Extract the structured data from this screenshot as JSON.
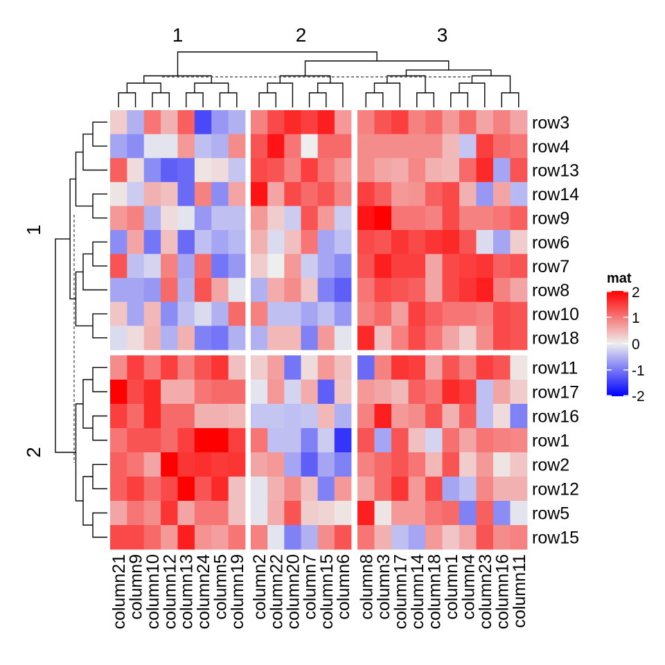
{
  "chart_data": {
    "type": "heatmap",
    "title": "",
    "legend": {
      "title": "mat",
      "ticks": [
        2,
        1,
        0,
        -1,
        -2
      ],
      "range": [
        -2,
        2
      ],
      "colors": {
        "low": "#0000ff",
        "mid": "#eeeeee",
        "high": "#ff0000"
      },
      "placement": "right"
    },
    "column_slices": [
      {
        "label": "1",
        "columns": [
          "column21",
          "column9",
          "column10",
          "column12",
          "column13",
          "column24",
          "column5",
          "column19"
        ]
      },
      {
        "label": "2",
        "columns": [
          "column2",
          "column22",
          "column20",
          "column7",
          "column15",
          "column6"
        ]
      },
      {
        "label": "3",
        "columns": [
          "column8",
          "column3",
          "column17",
          "column14",
          "column18",
          "column1",
          "column4",
          "column23",
          "column16",
          "column11"
        ]
      }
    ],
    "row_slices": [
      {
        "label": "1",
        "rows": [
          "row3",
          "row4",
          "row13",
          "row14",
          "row9",
          "row6",
          "row7",
          "row8",
          "row10",
          "row18"
        ]
      },
      {
        "label": "2",
        "rows": [
          "row11",
          "row17",
          "row16",
          "row1",
          "row2",
          "row12",
          "row5",
          "row15"
        ]
      }
    ],
    "values": [
      [
        0.2,
        -0.4,
        0.9,
        0.4,
        1.1,
        -1.3,
        -0.6,
        -0.4,
        0.8,
        1.3,
        1.6,
        1.4,
        1.7,
        0.6,
        0.8,
        1.2,
        1.4,
        0.8,
        1.0,
        0.6,
        1.0,
        0.5,
        0.8,
        0.5
      ],
      [
        -0.5,
        -0.7,
        -0.05,
        -0.05,
        0.6,
        -0.3,
        -0.4,
        0.7,
        1.2,
        1.8,
        0.9,
        0.0,
        1.0,
        1.0,
        0.7,
        0.7,
        0.7,
        0.7,
        0.7,
        0.35,
        -0.25,
        1.4,
        1.0,
        0.9
      ],
      [
        1.1,
        0.1,
        -0.7,
        -1.1,
        -1.0,
        0.05,
        0.1,
        -0.25,
        1.3,
        1.2,
        0.8,
        1.4,
        0.9,
        0.6,
        0.7,
        0.5,
        0.45,
        0.75,
        0.4,
        0.35,
        1.0,
        1.6,
        -0.5,
        1.2
      ],
      [
        0.05,
        -0.2,
        0.4,
        0.3,
        -1.0,
        0.8,
        -0.7,
        0.5,
        1.8,
        0.5,
        1.3,
        1.0,
        1.2,
        0.8,
        1.4,
        1.1,
        0.6,
        0.65,
        1.1,
        1.3,
        0.4,
        -0.6,
        0.5,
        -0.35
      ],
      [
        0.6,
        0.8,
        -0.4,
        0.1,
        -0.05,
        -0.6,
        -0.3,
        -0.3,
        0.6,
        0.2,
        -0.2,
        1.2,
        0.6,
        -0.2,
        1.8,
        2.0,
        0.9,
        0.9,
        0.8,
        1.3,
        0.8,
        0.8,
        0.9,
        1.1
      ],
      [
        -0.7,
        0.5,
        -0.9,
        0.3,
        -1.0,
        -0.3,
        -0.5,
        -0.35,
        0.4,
        -0.1,
        0.3,
        0.9,
        -0.5,
        -0.3,
        1.3,
        1.2,
        1.5,
        1.3,
        1.5,
        1.6,
        1.2,
        -0.1,
        -0.5,
        0.2
      ],
      [
        1.2,
        -0.3,
        -0.15,
        0.8,
        -0.5,
        1.0,
        -0.9,
        -0.6,
        0.2,
        0.0,
        0.6,
        -0.2,
        -0.5,
        -0.7,
        1.2,
        1.7,
        1.4,
        1.4,
        0.5,
        1.3,
        1.4,
        1.5,
        1.1,
        1.2
      ],
      [
        -0.5,
        -0.5,
        -0.6,
        1.0,
        -0.4,
        1.2,
        0.5,
        -0.05,
        -0.4,
        0.45,
        0.7,
        0.25,
        -0.8,
        -1.1,
        0.9,
        1.3,
        1.2,
        1.1,
        0.5,
        1.3,
        1.5,
        1.7,
        0.8,
        0.5
      ],
      [
        0.25,
        -0.5,
        0.35,
        -0.7,
        -0.3,
        -0.1,
        -0.4,
        1.0,
        0.8,
        -0.3,
        -0.3,
        -0.5,
        -0.3,
        -0.6,
        0.8,
        1.0,
        0.55,
        1.4,
        1.1,
        0.9,
        0.9,
        0.8,
        1.3,
        1.2
      ],
      [
        -0.1,
        0.1,
        0.4,
        -0.4,
        0.4,
        -0.8,
        -0.9,
        -0.4,
        -0.4,
        0.35,
        0.35,
        -0.8,
        0.6,
        -0.05,
        1.6,
        0.3,
        0.8,
        1.3,
        0.9,
        0.5,
        0.2,
        0.7,
        1.3,
        1.2
      ],
      [
        0.7,
        1.4,
        0.9,
        1.4,
        0.8,
        1.2,
        1.5,
        0.3,
        0.2,
        0.55,
        -0.9,
        0.1,
        0.6,
        0.3,
        -1.0,
        0.8,
        1.5,
        1.4,
        0.5,
        1.2,
        0.8,
        1.4,
        1.2,
        0.05
      ],
      [
        2.0,
        1.3,
        1.6,
        0.45,
        0.45,
        0.9,
        1.0,
        1.0,
        -0.05,
        0.6,
        -0.15,
        0.45,
        -1.1,
        0.25,
        0.6,
        0.5,
        0.35,
        1.1,
        0.9,
        1.6,
        1.4,
        -0.3,
        0.5,
        0.2
      ],
      [
        1.4,
        1.0,
        1.6,
        1.0,
        1.0,
        0.4,
        0.4,
        0.35,
        -0.25,
        -0.25,
        -0.3,
        -0.25,
        0.35,
        -0.4,
        0.8,
        1.7,
        0.6,
        0.7,
        1.2,
        0.4,
        1.1,
        -0.3,
        0.1,
        -0.8
      ],
      [
        0.9,
        1.2,
        1.2,
        1.0,
        1.4,
        2.1,
        2.1,
        1.4,
        0.9,
        -0.3,
        -0.3,
        -0.8,
        -0.2,
        -1.5,
        1.2,
        -0.5,
        1.2,
        0.3,
        -0.15,
        0.95,
        0.5,
        0.9,
        0.8,
        0.75
      ],
      [
        1.1,
        0.9,
        0.5,
        2.1,
        1.5,
        1.55,
        1.45,
        1.5,
        0.5,
        0.6,
        -0.5,
        -1.1,
        -0.5,
        -0.8,
        0.8,
        1.0,
        1.2,
        0.9,
        0.35,
        1.2,
        0.2,
        0.6,
        0.05,
        0.25
      ],
      [
        1.1,
        1.4,
        1.0,
        1.3,
        2.1,
        1.2,
        1.6,
        0.3,
        -0.05,
        0.4,
        0.7,
        0.3,
        -0.8,
        0.6,
        0.5,
        1.0,
        1.5,
        0.6,
        1.3,
        -0.5,
        -0.3,
        0.75,
        0.4,
        0.4
      ],
      [
        0.5,
        0.9,
        0.7,
        1.5,
        0.5,
        0.9,
        0.9,
        0.3,
        -0.05,
        0.45,
        1.2,
        0.2,
        0.15,
        0.05,
        1.7,
        0.05,
        0.6,
        0.6,
        0.9,
        1.0,
        -0.8,
        1.1,
        -0.7,
        -0.05
      ],
      [
        1.3,
        1.3,
        1.0,
        0.6,
        1.7,
        0.65,
        0.55,
        0.9,
        0.8,
        -0.05,
        -0.8,
        -0.4,
        0.7,
        1.2,
        0.9,
        0.4,
        -0.3,
        -0.5,
        0.6,
        0.25,
        0.5,
        1.2,
        0.7,
        0.8
      ]
    ]
  }
}
